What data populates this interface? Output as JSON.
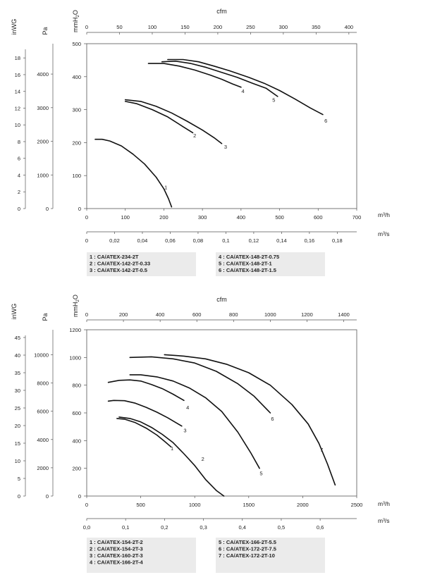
{
  "charts": [
    {
      "type": "line",
      "vertical_labels": {
        "inwg": "inWG",
        "pa": "Pa",
        "mmh2o_main": "mmH",
        "mmh2o_sub": "2",
        "mmh2o_tail": "O"
      },
      "top_axis": {
        "label": "cfm",
        "ticks": [
          "0",
          "50",
          "100",
          "150",
          "200",
          "250",
          "300",
          "350",
          "400"
        ],
        "max": 412
      },
      "mm_axis": {
        "ticks": [
          "0",
          "100",
          "200",
          "300",
          "400",
          "500"
        ],
        "max": 500
      },
      "pa_axis": {
        "ticks": [
          "0",
          "1000",
          "2000",
          "3000",
          "4000"
        ],
        "max": 4903
      },
      "inwg_axis": {
        "ticks": [
          "0",
          "2",
          "4",
          "6",
          "8",
          "10",
          "12",
          "14",
          "16",
          "18"
        ],
        "max": 19.7
      },
      "m3h_axis": {
        "label": "m³/h",
        "ticks": [
          "0",
          "100",
          "200",
          "300",
          "400",
          "500",
          "600",
          "700"
        ],
        "max": 700
      },
      "m3s_axis": {
        "label": "m³/s",
        "ticks": [
          "0",
          "0,02",
          "0,04",
          "0,06",
          "0,08",
          "0,1",
          "0,12",
          "0,14",
          "0,16",
          "0,18"
        ],
        "max": 0.194
      },
      "series": [
        {
          "name": "1",
          "points": [
            [
              22,
              210
            ],
            [
              40,
              210
            ],
            [
              60,
              205
            ],
            [
              90,
              190
            ],
            [
              120,
              165
            ],
            [
              150,
              135
            ],
            [
              180,
              95
            ],
            [
              200,
              60
            ],
            [
              212,
              30
            ],
            [
              220,
              5
            ]
          ],
          "label_at": [
            205,
            65
          ]
        },
        {
          "name": "2",
          "points": [
            [
              100,
              325
            ],
            [
              130,
              318
            ],
            [
              170,
              300
            ],
            [
              210,
              278
            ],
            [
              250,
              248
            ],
            [
              275,
              230
            ]
          ],
          "label_at": [
            280,
            222
          ]
        },
        {
          "name": "3",
          "points": [
            [
              100,
              330
            ],
            [
              140,
              325
            ],
            [
              180,
              310
            ],
            [
              220,
              290
            ],
            [
              260,
              265
            ],
            [
              300,
              238
            ],
            [
              330,
              215
            ],
            [
              350,
              197
            ]
          ],
          "label_at": [
            360,
            188
          ]
        },
        {
          "name": "4",
          "points": [
            [
              160,
              440
            ],
            [
              200,
              440
            ],
            [
              240,
              432
            ],
            [
              280,
              420
            ],
            [
              320,
              405
            ],
            [
              350,
              392
            ],
            [
              378,
              378
            ],
            [
              400,
              368
            ]
          ],
          "label_at": [
            405,
            357
          ]
        },
        {
          "name": "5",
          "points": [
            [
              195,
              445
            ],
            [
              230,
              447
            ],
            [
              270,
              440
            ],
            [
              310,
              428
            ],
            [
              350,
              413
            ],
            [
              390,
              398
            ],
            [
              430,
              380
            ],
            [
              465,
              365
            ],
            [
              495,
              340
            ]
          ],
          "label_at": [
            485,
            330
          ]
        },
        {
          "name": "6",
          "points": [
            [
              210,
              452
            ],
            [
              250,
              452
            ],
            [
              290,
              445
            ],
            [
              330,
              432
            ],
            [
              370,
              418
            ],
            [
              420,
              398
            ],
            [
              460,
              380
            ],
            [
              500,
              358
            ],
            [
              540,
              332
            ],
            [
              580,
              305
            ],
            [
              612,
              285
            ]
          ],
          "label_at": [
            620,
            267
          ]
        }
      ],
      "legend": {
        "left": [
          "1 : CA/ATEX-234-2T",
          "2 : CA/ATEX-142-2T-0.33",
          "3 : CA/ATEX-142-2T-0.5"
        ],
        "right": [
          "4 : CA/ATEX-148-2T-0.75",
          "5 : CA/ATEX-148-2T-1",
          "6 : CA/ATEX-148-2T-1.5"
        ]
      }
    },
    {
      "type": "line",
      "vertical_labels": {
        "inwg": "inWG",
        "pa": "Pa",
        "mmh2o_main": "mmH",
        "mmh2o_sub": "2",
        "mmh2o_tail": "O"
      },
      "top_axis": {
        "label": "cfm",
        "ticks": [
          "0",
          "200",
          "400",
          "600",
          "800",
          "1000",
          "1200",
          "1400"
        ],
        "max": 1471
      },
      "mm_axis": {
        "ticks": [
          "0",
          "200",
          "400",
          "600",
          "800",
          "1000",
          "1200"
        ],
        "max": 1200
      },
      "pa_axis": {
        "ticks": [
          "0",
          "2000",
          "4000",
          "6000",
          "8000",
          "10000"
        ],
        "max": 11768
      },
      "inwg_axis": {
        "ticks": [
          "0",
          "5",
          "10",
          "15",
          "20",
          "25",
          "30",
          "35",
          "40",
          "45"
        ],
        "max": 47.2
      },
      "m3h_axis": {
        "label": "m³/h",
        "ticks": [
          "0",
          "500",
          "1000",
          "1500",
          "2000",
          "2500"
        ],
        "max": 2500
      },
      "m3s_axis": {
        "label": "m³/s",
        "ticks": [
          "0,0",
          "0,1",
          "0,2",
          "0,3",
          "0,4",
          "0,5",
          "0,6"
        ],
        "max": 0.694
      },
      "series": [
        {
          "name": "1",
          "points": [
            [
              280,
              560
            ],
            [
              350,
              555
            ],
            [
              450,
              530
            ],
            [
              550,
              490
            ],
            [
              650,
              440
            ],
            [
              720,
              395
            ],
            [
              780,
              355
            ]
          ],
          "label_at": [
            790,
            345
          ]
        },
        {
          "name": "2",
          "points": [
            [
              300,
              570
            ],
            [
              400,
              560
            ],
            [
              500,
              535
            ],
            [
              600,
              495
            ],
            [
              700,
              445
            ],
            [
              800,
              385
            ],
            [
              900,
              305
            ],
            [
              1000,
              220
            ],
            [
              1100,
              120
            ],
            [
              1200,
              40
            ],
            [
              1270,
              0
            ]
          ],
          "label_at": [
            1075,
            270
          ]
        },
        {
          "name": "3",
          "points": [
            [
              200,
              685
            ],
            [
              250,
              690
            ],
            [
              350,
              688
            ],
            [
              450,
              670
            ],
            [
              550,
              640
            ],
            [
              650,
              605
            ],
            [
              750,
              565
            ],
            [
              880,
              505
            ]
          ],
          "label_at": [
            910,
            475
          ]
        },
        {
          "name": "4",
          "points": [
            [
              200,
              820
            ],
            [
              300,
              835
            ],
            [
              400,
              838
            ],
            [
              500,
              830
            ],
            [
              600,
              805
            ],
            [
              700,
              775
            ],
            [
              800,
              735
            ],
            [
              900,
              690
            ]
          ],
          "label_at": [
            935,
            640
          ]
        },
        {
          "name": "5",
          "points": [
            [
              400,
              875
            ],
            [
              500,
              875
            ],
            [
              650,
              860
            ],
            [
              800,
              830
            ],
            [
              950,
              780
            ],
            [
              1100,
              710
            ],
            [
              1250,
              610
            ],
            [
              1400,
              460
            ],
            [
              1520,
              310
            ],
            [
              1600,
              200
            ]
          ],
          "label_at": [
            1615,
            165
          ]
        },
        {
          "name": "6",
          "points": [
            [
              400,
              1000
            ],
            [
              600,
              1005
            ],
            [
              800,
              990
            ],
            [
              1000,
              960
            ],
            [
              1200,
              900
            ],
            [
              1400,
              810
            ],
            [
              1550,
              720
            ],
            [
              1700,
              600
            ]
          ],
          "label_at": [
            1720,
            560
          ]
        },
        {
          "name": "7",
          "points": [
            [
              720,
              1020
            ],
            [
              900,
              1010
            ],
            [
              1100,
              990
            ],
            [
              1300,
              950
            ],
            [
              1500,
              890
            ],
            [
              1700,
              800
            ],
            [
              1900,
              660
            ],
            [
              2050,
              520
            ],
            [
              2150,
              380
            ],
            [
              2230,
              230
            ],
            [
              2300,
              80
            ]
          ],
          "label_at": [
            2175,
            335
          ]
        }
      ],
      "legend": {
        "left": [
          "1 : CA/ATEX-154-2T-2",
          "2 : CA/ATEX-154-2T-3",
          "3 : CA/ATEX-160-2T-3",
          "4 : CA/ATEX-166-2T-4"
        ],
        "right": [
          "5 : CA/ATEX-166-2T-5.5",
          "6 : CA/ATEX-172-2T-7.5",
          "7 : CA/ATEX-172-2T-10"
        ]
      }
    }
  ]
}
